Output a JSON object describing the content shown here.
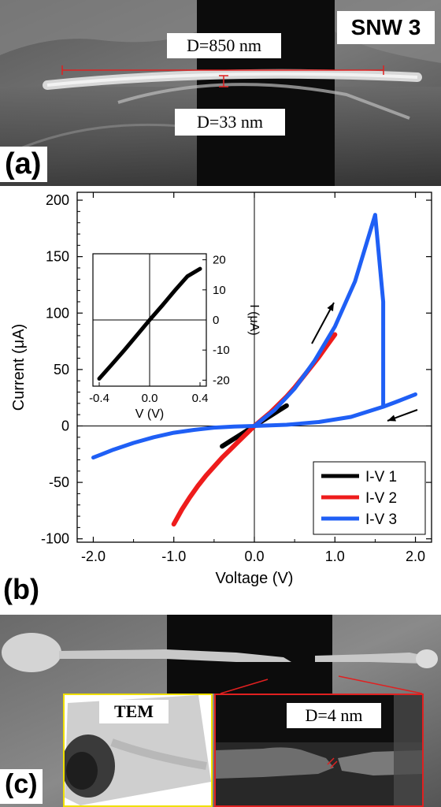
{
  "panel_a": {
    "letter": "(a)",
    "sample_label": "SNW 3",
    "length_label": "D=850  nm",
    "width_label": "D=33  nm"
  },
  "panel_b": {
    "letter": "(b)"
  },
  "panel_c": {
    "letter": "(c)",
    "tem_label": "TEM",
    "gap_label": "D=4  nm",
    "colors": {
      "tem_border": "#f0e000",
      "zoom_border": "#e02020",
      "measure": "#e02020"
    }
  },
  "chart_data": [
    {
      "type": "line",
      "title": "",
      "xlabel": "Voltage (V)",
      "ylabel": "Current (μA)",
      "xlim": [
        -2.2,
        2.2
      ],
      "ylim": [
        -103,
        207
      ],
      "xticks": [
        -2.0,
        -1.0,
        0.0,
        1.0,
        2.0
      ],
      "xtick_labels": [
        "-2.0",
        "-1.0",
        "0.0",
        "1.0",
        "2.0"
      ],
      "yticks": [
        -100,
        -50,
        0,
        50,
        100,
        150,
        200
      ],
      "ytick_labels": [
        "-100",
        "-50",
        "0",
        "50",
        "100",
        "150",
        "200"
      ],
      "grid": false,
      "zero_lines": true,
      "legend": "bottom-right",
      "series": [
        {
          "name": "I-V 1",
          "color": "#000000",
          "x": [
            -0.4,
            -0.3,
            -0.2,
            -0.1,
            0.0,
            0.1,
            0.2,
            0.3,
            0.4
          ],
          "y": [
            -18,
            -13.5,
            -9,
            -4.5,
            0,
            4.5,
            9,
            13.5,
            18
          ]
        },
        {
          "name": "I-V 2",
          "color": "#ee1c1c",
          "x": [
            -1.0,
            -0.9,
            -0.8,
            -0.7,
            -0.6,
            -0.5,
            -0.4,
            -0.3,
            -0.2,
            -0.1,
            0.0,
            0.1,
            0.2,
            0.3,
            0.4,
            0.5,
            0.6,
            0.7,
            0.8,
            0.9,
            1.0
          ],
          "y": [
            -87,
            -74,
            -63,
            -53,
            -44,
            -36,
            -28,
            -21,
            -14,
            -7,
            0,
            6,
            12,
            19,
            26,
            34,
            43,
            52,
            61,
            71,
            81
          ]
        },
        {
          "name": "I-V 3",
          "color": "#1f5ff5",
          "x": [
            -2.0,
            -1.75,
            -1.5,
            -1.25,
            -1.0,
            -0.75,
            -0.5,
            -0.25,
            0.0,
            0.25,
            0.5,
            0.75,
            1.0,
            1.25,
            1.5,
            1.6,
            1.6,
            1.75,
            2.0,
            null,
            1.6,
            1.2,
            0.8,
            0.4,
            0.0
          ],
          "y": [
            -28,
            -21,
            -15,
            -10,
            -6,
            -3.5,
            -1.5,
            -0.5,
            0,
            14,
            33,
            58,
            88,
            128,
            187,
            110,
            17,
            21,
            28,
            null,
            17,
            8,
            3.5,
            1,
            0
          ]
        }
      ],
      "annotations": [
        "↗ arrow near upper branch",
        "↙ arrow near return branch"
      ]
    },
    {
      "type": "line",
      "title": "",
      "xlabel": "V (V)",
      "ylabel": "I (μA)",
      "xlim": [
        -0.45,
        0.45
      ],
      "ylim": [
        -22,
        22
      ],
      "xticks": [
        -0.4,
        0.0,
        0.4
      ],
      "xtick_labels": [
        "-0.4",
        "0.0",
        "0.4"
      ],
      "yticks": [
        -20,
        -10,
        0,
        10,
        20
      ],
      "ytick_labels": [
        "-20",
        "-10",
        "0",
        "10",
        "20"
      ],
      "y_axis_side": "right",
      "series": [
        {
          "color": "#000000",
          "x": [
            -0.4,
            -0.3,
            -0.2,
            -0.1,
            0.0,
            0.1,
            0.2,
            0.3,
            0.4
          ],
          "y": [
            -19.5,
            -14.8,
            -10,
            -5,
            0,
            4.8,
            9.8,
            14.5,
            17
          ]
        }
      ]
    }
  ]
}
